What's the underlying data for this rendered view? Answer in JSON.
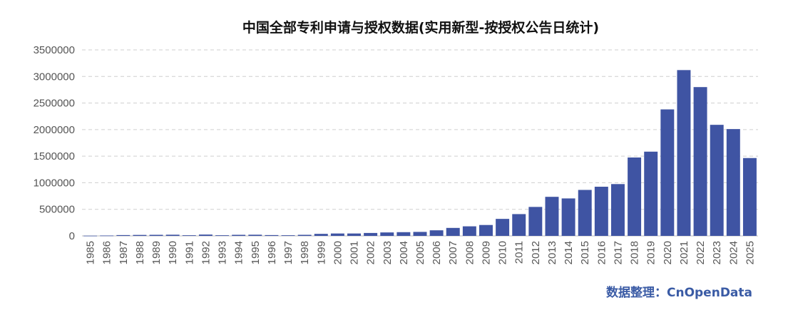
{
  "chart_data": {
    "type": "bar",
    "title": "中国全部专利申请与授权数据(实用新型-按授权公告日统计)",
    "xlabel": "",
    "ylabel": "",
    "ylim": [
      0,
      3500000
    ],
    "yticks": [
      0,
      500000,
      1000000,
      1500000,
      2000000,
      2500000,
      3000000,
      3500000
    ],
    "ytick_labels": [
      "0",
      "500000",
      "1000000",
      "1500000",
      "2000000",
      "2500000",
      "3000000",
      "3500000"
    ],
    "grid": true,
    "legend": "none",
    "categories": [
      "1985",
      "1986",
      "1987",
      "1988",
      "1989",
      "1990",
      "1991",
      "1992",
      "1993",
      "1994",
      "1995",
      "1996",
      "1997",
      "1998",
      "1999",
      "2000",
      "2001",
      "2002",
      "2003",
      "2004",
      "2005",
      "2006",
      "2007",
      "2008",
      "2009",
      "2010",
      "2011",
      "2012",
      "2013",
      "2014",
      "2015",
      "2016",
      "2017",
      "2018",
      "2019",
      "2020",
      "2021",
      "2022",
      "2023",
      "2024",
      "2025"
    ],
    "values": [
      4000,
      7000,
      15000,
      18000,
      20000,
      22000,
      12000,
      25000,
      12000,
      20000,
      22000,
      15000,
      12000,
      20000,
      38000,
      45000,
      45000,
      55000,
      65000,
      70000,
      75000,
      105000,
      150000,
      180000,
      205000,
      320000,
      410000,
      545000,
      735000,
      705000,
      865000,
      925000,
      975000,
      1475000,
      1585000,
      2380000,
      3120000,
      2800000,
      2090000,
      2010000,
      1465000
    ],
    "bar_color": "#3f54a3",
    "credit": "数据整理：CnOpenData",
    "credit_color": "#3a5ba5"
  }
}
